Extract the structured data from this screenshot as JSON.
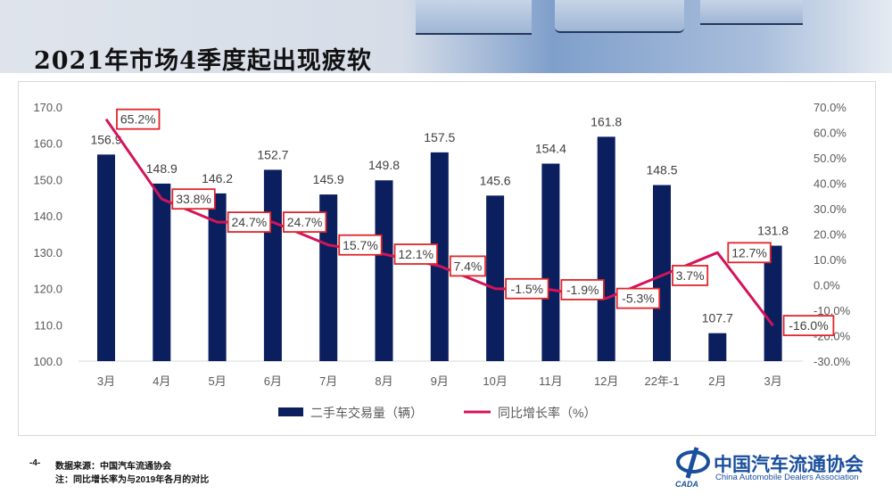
{
  "slide": {
    "title": "2021年市场4季度起出现疲软",
    "page_number": "-4-",
    "source_note": "数据来源：中国汽车流通协会",
    "comparison_note": "注：同比增长率为与2019年各月的对比",
    "logo": {
      "name_cn": "中国汽车流通协会",
      "name_en": "China Automobile Dealers Association",
      "abbr": "CADA"
    }
  },
  "chart_data": {
    "type": "bar+line",
    "categories": [
      "3月",
      "4月",
      "5月",
      "6月",
      "7月",
      "8月",
      "9月",
      "10月",
      "11月",
      "12月",
      "22年-1",
      "2月",
      "3月"
    ],
    "series": [
      {
        "name": "二手车交易量（辆）",
        "type": "bar",
        "axis": "left",
        "color": "#0b1f5e",
        "values": [
          156.9,
          148.9,
          146.2,
          152.7,
          145.9,
          149.8,
          157.5,
          145.6,
          154.4,
          161.8,
          148.5,
          107.7,
          131.8
        ],
        "labels": [
          "156.9",
          "148.9",
          "146.2",
          "152.7",
          "145.9",
          "149.8",
          "157.5",
          "145.6",
          "154.4",
          "161.8",
          "148.5",
          "107.7",
          "131.8"
        ]
      },
      {
        "name": "同比增长率（%）",
        "type": "line",
        "axis": "right",
        "color": "#d3145a",
        "values": [
          65.2,
          33.8,
          24.7,
          24.7,
          15.7,
          12.1,
          7.4,
          -1.5,
          -1.9,
          -5.3,
          3.7,
          12.7,
          -16.0
        ],
        "labels": [
          "65.2%",
          "33.8%",
          "24.7%",
          "24.7%",
          "15.7%",
          "12.1%",
          "7.4%",
          "-1.5%",
          "-1.9%",
          "-5.3%",
          "3.7%",
          "12.7%",
          "-16.0%"
        ]
      }
    ],
    "left_axis": {
      "range": [
        100,
        170
      ],
      "ticks": [
        "100.0",
        "110.0",
        "120.0",
        "130.0",
        "140.0",
        "150.0",
        "160.0",
        "170.0"
      ]
    },
    "right_axis": {
      "range": [
        -30,
        70
      ],
      "ticks": [
        "-30.0%",
        "-20.0%",
        "-10.0%",
        "0.0%",
        "10.0%",
        "20.0%",
        "30.0%",
        "40.0%",
        "50.0%",
        "60.0%",
        "70.0%"
      ]
    },
    "grid": false,
    "legend": "bottom",
    "label_border_color": "#e0262b"
  }
}
